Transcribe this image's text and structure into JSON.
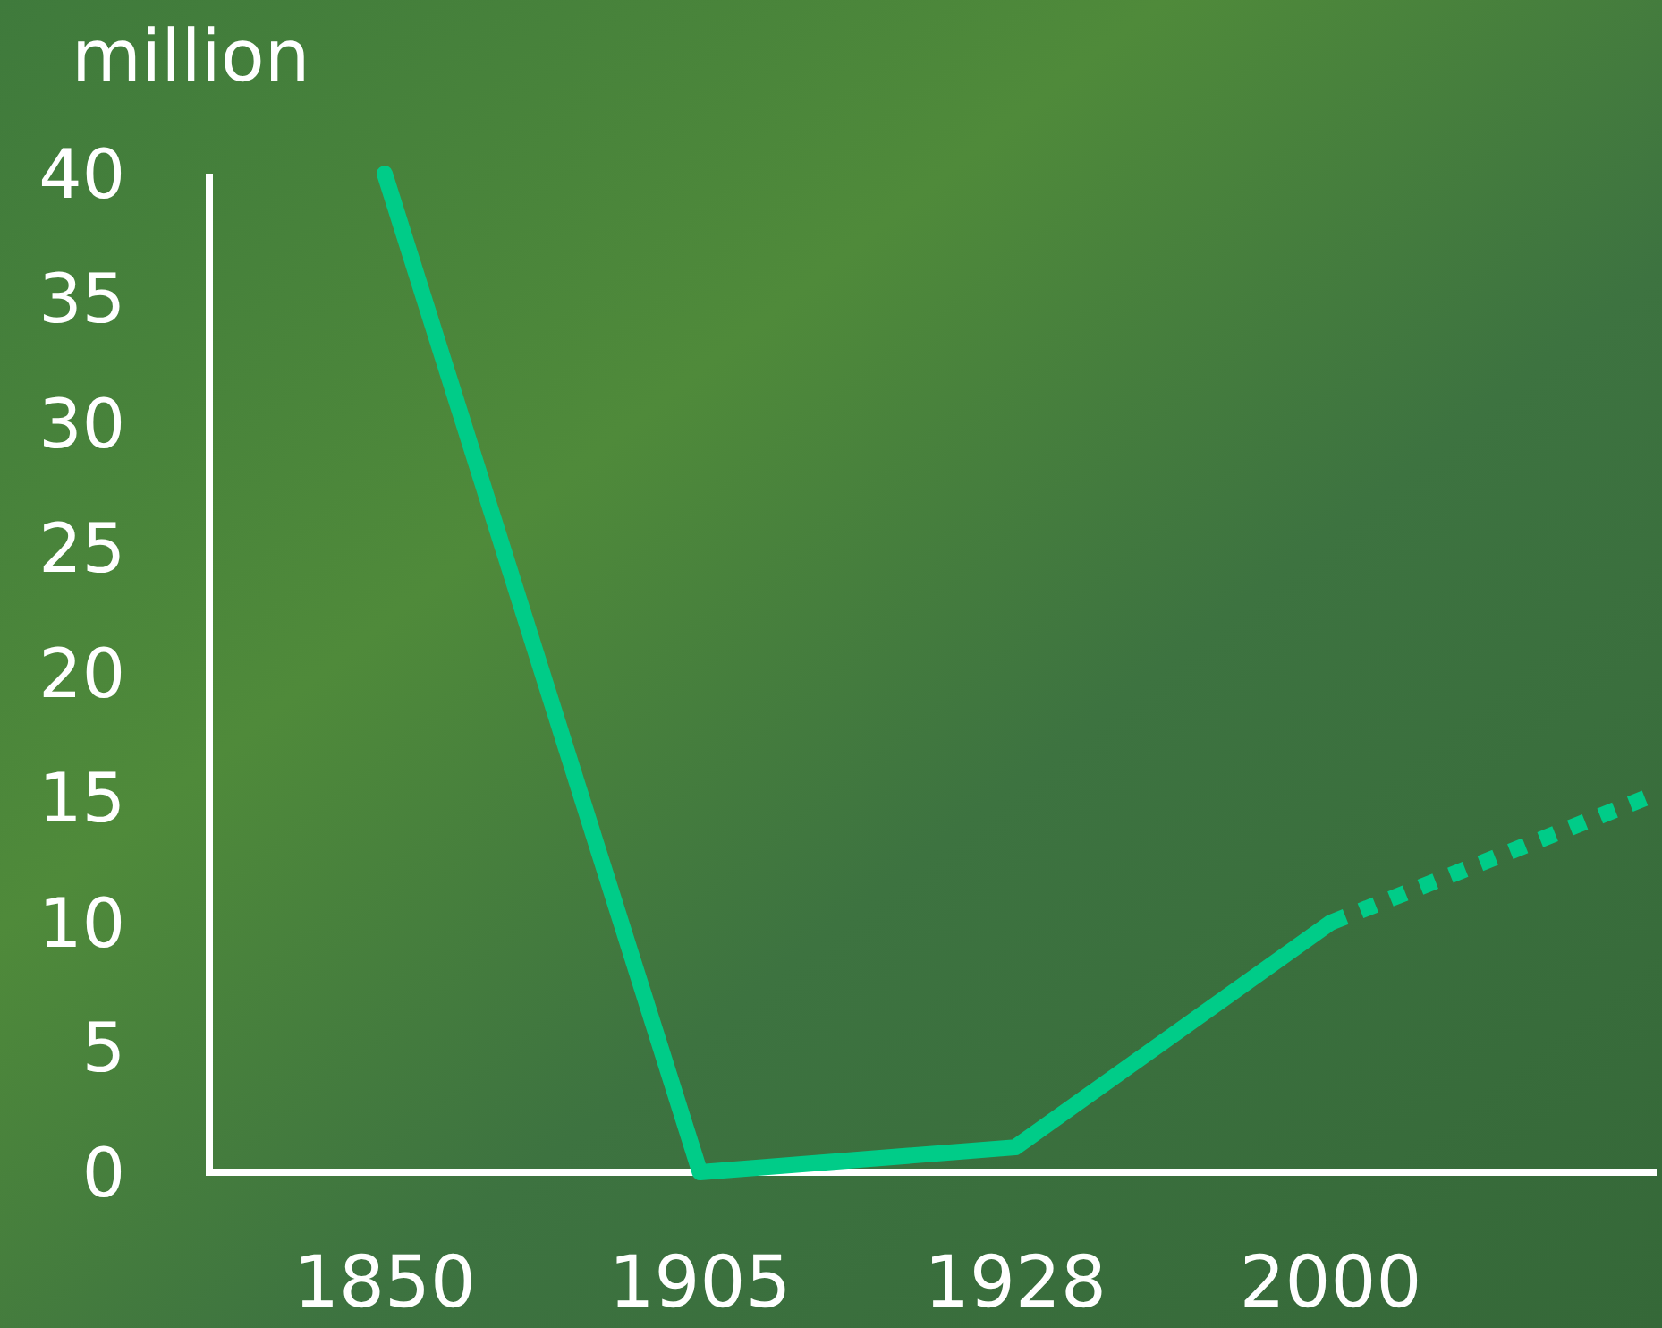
{
  "chart_data": {
    "type": "line",
    "ylabel": "million",
    "categories": [
      "1850",
      "1905",
      "1928",
      "2000",
      null
    ],
    "series": [
      {
        "color": "#00cc88",
        "values": [
          40,
          0,
          1,
          10,
          null
        ],
        "line_style": "solid"
      },
      {
        "color": "#00cc88",
        "values": [
          null,
          null,
          null,
          10,
          15
        ],
        "line_style": "dotted"
      }
    ],
    "ylim": [
      0,
      40
    ],
    "yticks": [
      0,
      5,
      10,
      15,
      20,
      25,
      30,
      35,
      40
    ],
    "marker": "none"
  }
}
